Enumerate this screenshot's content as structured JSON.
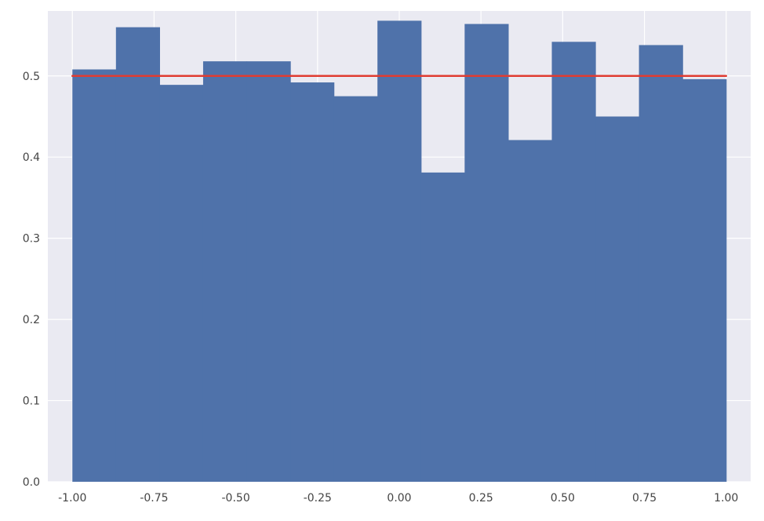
{
  "chart_data": {
    "type": "bar",
    "subtype": "histogram",
    "title": "",
    "xlabel": "",
    "ylabel": "",
    "xlim": [
      -1.075,
      1.075
    ],
    "ylim": [
      0,
      0.58
    ],
    "grid": true,
    "style": "seaborn-darkgrid",
    "bin_edges": [
      -1.0,
      -0.8667,
      -0.7333,
      -0.6,
      -0.4667,
      -0.3333,
      -0.2,
      -0.0667,
      0.0667,
      0.2,
      0.3333,
      0.4667,
      0.6,
      0.7333,
      0.8667,
      1.0
    ],
    "values": [
      0.508,
      0.56,
      0.489,
      0.518,
      0.518,
      0.492,
      0.475,
      0.568,
      0.381,
      0.564,
      0.421,
      0.542,
      0.45,
      0.538,
      0.496
    ],
    "reference_line": {
      "y": 0.5,
      "x": [
        -1.0,
        1.0
      ],
      "color": "#e03c31"
    },
    "bar_color": "#4f72aa",
    "xticks": [
      -1.0,
      -0.75,
      -0.5,
      -0.25,
      0.0,
      0.25,
      0.5,
      0.75,
      1.0
    ],
    "xtick_labels": [
      "-1.00",
      "-0.75",
      "-0.50",
      "-0.25",
      "0.00",
      "0.25",
      "0.50",
      "0.75",
      "1.00"
    ],
    "yticks": [
      0.0,
      0.1,
      0.2,
      0.3,
      0.4,
      0.5
    ],
    "ytick_labels": [
      "0.0",
      "0.1",
      "0.2",
      "0.3",
      "0.4",
      "0.5"
    ]
  }
}
